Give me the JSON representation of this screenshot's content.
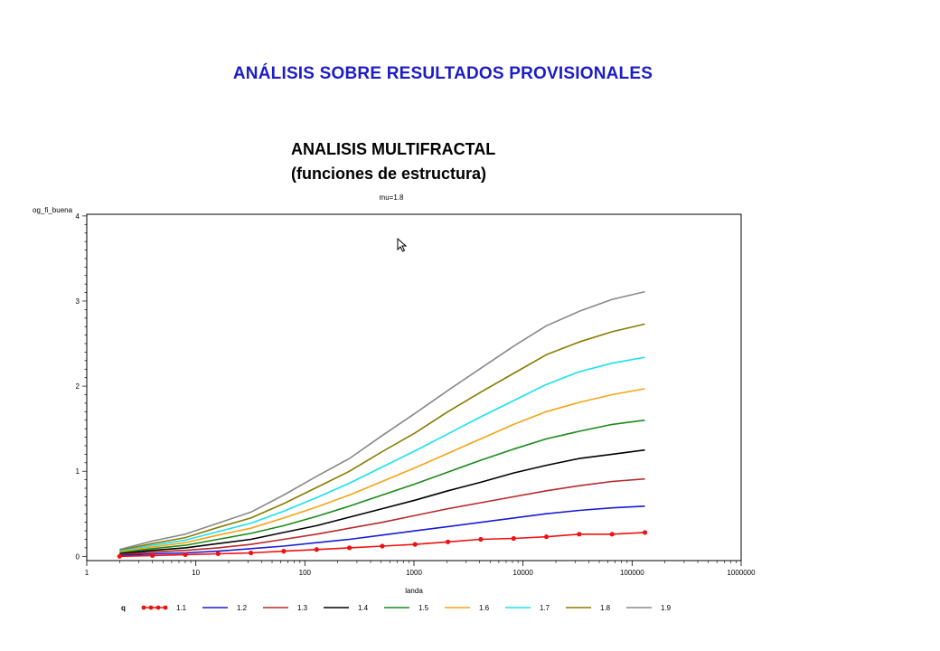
{
  "page": {
    "title": "ANÁLISIS SOBRE RESULTADOS PROVISIONALES",
    "section_title_line1": "ANALISIS MULTIFRACTAL",
    "section_title_line2": "(funciones de estructura)"
  },
  "chart_data": {
    "type": "line",
    "title": "mu=1.8",
    "xlabel": "landa",
    "ylabel": "og_fi_buena",
    "xscale": "log",
    "xlim": [
      1,
      1000000
    ],
    "ylim": [
      -0.05,
      4.02
    ],
    "x_ticks": [
      1,
      10,
      100,
      1000,
      10000,
      100000,
      1000000
    ],
    "x_tick_labels": [
      "1",
      "10",
      "100",
      "1000",
      "10000",
      "100000",
      "1000000"
    ],
    "y_ticks": [
      0,
      1,
      2,
      3,
      4
    ],
    "y_tick_labels": [
      "0",
      "1",
      "2",
      "3",
      "4"
    ],
    "legend_title": "q",
    "legend_position": "bottom",
    "x": [
      2,
      4,
      8,
      16,
      32,
      64,
      128,
      256,
      512,
      1024,
      2048,
      4096,
      8192,
      16384,
      32768,
      65536,
      131072
    ],
    "series": [
      {
        "name": "1.1",
        "color": "#ee1111",
        "markers": true,
        "values": [
          0.0,
          0.01,
          0.02,
          0.03,
          0.04,
          0.06,
          0.08,
          0.1,
          0.12,
          0.14,
          0.17,
          0.2,
          0.21,
          0.23,
          0.26,
          0.26,
          0.28
        ]
      },
      {
        "name": "1.2",
        "color": "#1a1ad6",
        "markers": false,
        "values": [
          0.01,
          0.03,
          0.04,
          0.06,
          0.09,
          0.12,
          0.16,
          0.2,
          0.25,
          0.3,
          0.35,
          0.4,
          0.45,
          0.5,
          0.54,
          0.57,
          0.59
        ]
      },
      {
        "name": "1.3",
        "color": "#b8282a",
        "markers": false,
        "values": [
          0.02,
          0.05,
          0.07,
          0.1,
          0.14,
          0.2,
          0.26,
          0.33,
          0.4,
          0.48,
          0.56,
          0.63,
          0.7,
          0.77,
          0.83,
          0.88,
          0.91
        ]
      },
      {
        "name": "1.4",
        "color": "#000000",
        "markers": false,
        "values": [
          0.03,
          0.07,
          0.1,
          0.15,
          0.2,
          0.28,
          0.36,
          0.46,
          0.56,
          0.66,
          0.77,
          0.87,
          0.98,
          1.07,
          1.15,
          1.2,
          1.25
        ]
      },
      {
        "name": "1.5",
        "color": "#1a8a1a",
        "markers": false,
        "values": [
          0.04,
          0.09,
          0.13,
          0.2,
          0.27,
          0.36,
          0.47,
          0.59,
          0.72,
          0.85,
          0.99,
          1.13,
          1.26,
          1.38,
          1.47,
          1.55,
          1.6
        ]
      },
      {
        "name": "1.6",
        "color": "#f5a316",
        "markers": false,
        "values": [
          0.05,
          0.11,
          0.16,
          0.25,
          0.33,
          0.45,
          0.58,
          0.72,
          0.88,
          1.04,
          1.21,
          1.38,
          1.55,
          1.7,
          1.81,
          1.9,
          1.97
        ]
      },
      {
        "name": "1.7",
        "color": "#18e0f0",
        "markers": false,
        "values": [
          0.06,
          0.13,
          0.19,
          0.29,
          0.39,
          0.53,
          0.69,
          0.86,
          1.05,
          1.24,
          1.44,
          1.64,
          1.83,
          2.02,
          2.17,
          2.27,
          2.34
        ]
      },
      {
        "name": "1.8",
        "color": "#8a7a00",
        "markers": false,
        "values": [
          0.07,
          0.15,
          0.22,
          0.34,
          0.45,
          0.62,
          0.81,
          1.0,
          1.23,
          1.45,
          1.7,
          1.93,
          2.15,
          2.37,
          2.52,
          2.64,
          2.73
        ]
      },
      {
        "name": "1.9",
        "color": "#888888",
        "markers": false,
        "values": [
          0.08,
          0.18,
          0.26,
          0.39,
          0.52,
          0.72,
          0.94,
          1.15,
          1.42,
          1.68,
          1.95,
          2.21,
          2.47,
          2.71,
          2.88,
          3.02,
          3.11
        ]
      }
    ]
  }
}
